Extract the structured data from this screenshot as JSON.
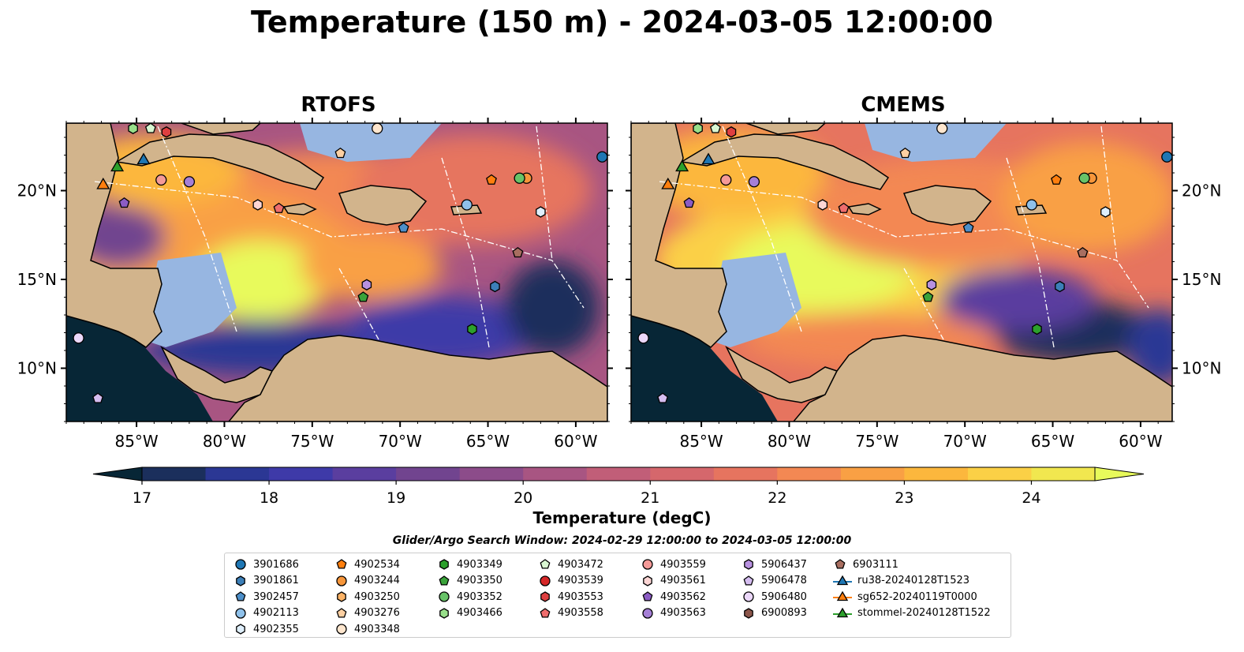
{
  "title": "Temperature (150 m) - 2024-03-05 12:00:00",
  "panels": [
    {
      "title": "RTOFS"
    },
    {
      "title": "CMEMS"
    }
  ],
  "colors": {
    "land": "#d2b48c",
    "shelf": "#97b6e1",
    "deep_cold": "#072636",
    "coast": "#000000",
    "eez": "#ffffff",
    "ramp": [
      "#072636",
      "#1b2f5c",
      "#2b3794",
      "#3e3aa8",
      "#5a3e9f",
      "#71448f",
      "#8c4c8a",
      "#a85582",
      "#c15e78",
      "#d5676c",
      "#e6745f",
      "#f38853",
      "#f9a044",
      "#fcb73d",
      "#fbd046",
      "#f1e74f",
      "#e8fa5b"
    ]
  },
  "axes": {
    "x_ticks": [
      -85,
      -80,
      -75,
      -70,
      -65,
      -60
    ],
    "x_tick_labels": [
      "85°W",
      "80°W",
      "75°W",
      "70°W",
      "65°W",
      "60°W"
    ],
    "y_ticks": [
      10,
      15,
      20
    ],
    "y_tick_labels": [
      "10°N",
      "15°N",
      "20°N"
    ],
    "xlim": [
      -89,
      -58.2
    ],
    "ylim": [
      7,
      23.8
    ]
  },
  "colorbar": {
    "label": "Temperature (degC)",
    "min": 16.75,
    "max": 24.5,
    "ticks": [
      17,
      18,
      19,
      20,
      21,
      22,
      23,
      24
    ],
    "extend": "both"
  },
  "legend": {
    "title": "Glider/Argo Search Window: 2024-02-29 12:00:00 to 2024-03-05 12:00:00",
    "entries": [
      {
        "label": "3901686",
        "marker": "circle",
        "color": "#1f77b4"
      },
      {
        "label": "3901861",
        "marker": "hexagon",
        "color": "#3c7fb8"
      },
      {
        "label": "3902457",
        "marker": "pentagon",
        "color": "#4d8fc9"
      },
      {
        "label": "4902113",
        "marker": "circle",
        "color": "#8fc1ea"
      },
      {
        "label": "4902355",
        "marker": "hexagon",
        "color": "#dfeffc"
      },
      {
        "label": "4902534",
        "marker": "pentagon",
        "color": "#ff7f0e"
      },
      {
        "label": "4903244",
        "marker": "circle",
        "color": "#f7963a"
      },
      {
        "label": "4903250",
        "marker": "hexagon",
        "color": "#fdb366"
      },
      {
        "label": "4903276",
        "marker": "pentagon",
        "color": "#fdd0a2"
      },
      {
        "label": "4903348",
        "marker": "circle",
        "color": "#fee6ce"
      },
      {
        "label": "4903349",
        "marker": "hexagon",
        "color": "#2ca02c"
      },
      {
        "label": "4903350",
        "marker": "pentagon",
        "color": "#3aa33a"
      },
      {
        "label": "4903352",
        "marker": "circle",
        "color": "#68c368"
      },
      {
        "label": "4903466",
        "marker": "hexagon",
        "color": "#98df8a"
      },
      {
        "label": "4903472",
        "marker": "pentagon",
        "color": "#d9f7d2"
      },
      {
        "label": "4903539",
        "marker": "circle",
        "color": "#d62728"
      },
      {
        "label": "4903553",
        "marker": "hexagon",
        "color": "#de3f40"
      },
      {
        "label": "4903558",
        "marker": "pentagon",
        "color": "#ef6d6d"
      },
      {
        "label": "4903559",
        "marker": "circle",
        "color": "#f59a98"
      },
      {
        "label": "4903561",
        "marker": "hexagon",
        "color": "#fcd5d4"
      },
      {
        "label": "4903562",
        "marker": "pentagon",
        "color": "#8c5cc4"
      },
      {
        "label": "4903563",
        "marker": "circle",
        "color": "#a57fd6"
      },
      {
        "label": "5906437",
        "marker": "hexagon",
        "color": "#b891e0"
      },
      {
        "label": "5906478",
        "marker": "pentagon",
        "color": "#d5bdf0"
      },
      {
        "label": "5906480",
        "marker": "circle",
        "color": "#ecd8fa"
      },
      {
        "label": "6900893",
        "marker": "hexagon",
        "color": "#8c564b"
      },
      {
        "label": "6903111",
        "marker": "pentagon",
        "color": "#a86e60"
      },
      {
        "label": "ru38-20240128T1523",
        "marker": "triangle-line",
        "color": "#1f77b4"
      },
      {
        "label": "sg652-20240119T0000",
        "marker": "triangle-line",
        "color": "#ff7f0e"
      },
      {
        "label": "stommel-20240128T1522",
        "marker": "triangle-line",
        "color": "#2ca02c"
      }
    ]
  },
  "chart_data": {
    "type": "heatmap",
    "title": "Temperature (150 m) - 2024-03-05 12:00:00",
    "xlabel": "",
    "ylabel": "",
    "panels": [
      "RTOFS",
      "CMEMS"
    ],
    "xlim": [
      -89,
      -58.2
    ],
    "ylim": [
      7,
      23.8
    ],
    "color_scale": {
      "label": "Temperature (degC)",
      "min": 16.75,
      "max": 24.5
    },
    "points": [
      {
        "id": "3901686",
        "lon": -58.5,
        "lat": 21.9
      },
      {
        "id": "3901861",
        "lon": -64.6,
        "lat": 14.6
      },
      {
        "id": "3902457",
        "lon": -69.8,
        "lat": 17.9
      },
      {
        "id": "4902113",
        "lon": -66.2,
        "lat": 19.2
      },
      {
        "id": "4902355",
        "lon": -62.0,
        "lat": 18.8
      },
      {
        "id": "4902534",
        "lon": -64.8,
        "lat": 20.6
      },
      {
        "id": "4903244",
        "lon": -62.8,
        "lat": 20.7
      },
      {
        "id": "4903348",
        "lon": -71.3,
        "lat": 23.5
      },
      {
        "id": "4903349",
        "lon": -65.9,
        "lat": 12.2
      },
      {
        "id": "4903350",
        "lon": -72.1,
        "lat": 14.0
      },
      {
        "id": "4903352",
        "lon": -63.2,
        "lat": 20.7
      },
      {
        "id": "4903472",
        "lon": -84.2,
        "lat": 23.5
      },
      {
        "id": "4903553",
        "lon": -83.3,
        "lat": 23.3
      },
      {
        "id": "4903558",
        "lon": -76.9,
        "lat": 19.0
      },
      {
        "id": "4903559",
        "lon": -83.6,
        "lat": 20.6
      },
      {
        "id": "4903561",
        "lon": -78.1,
        "lat": 19.2
      },
      {
        "id": "4903562",
        "lon": -85.7,
        "lat": 19.3
      },
      {
        "id": "4903563",
        "lon": -82.0,
        "lat": 20.5
      },
      {
        "id": "5906437",
        "lon": -71.9,
        "lat": 14.7
      },
      {
        "id": "5906478",
        "lon": -87.2,
        "lat": 8.3
      },
      {
        "id": "5906480",
        "lon": -88.3,
        "lat": 11.7
      },
      {
        "id": "6903111",
        "lon": -63.3,
        "lat": 16.5
      },
      {
        "id": "4903466",
        "lon": -85.2,
        "lat": 23.5
      },
      {
        "id": "4903276",
        "lon": -73.4,
        "lat": 22.1
      },
      {
        "id": "ru38-20240128T1523",
        "lon": -84.6,
        "lat": 21.7
      },
      {
        "id": "sg652-20240119T0000",
        "lon": -86.9,
        "lat": 20.3
      },
      {
        "id": "stommel-20240128T1522",
        "lon": -86.1,
        "lat": 21.3
      }
    ]
  }
}
